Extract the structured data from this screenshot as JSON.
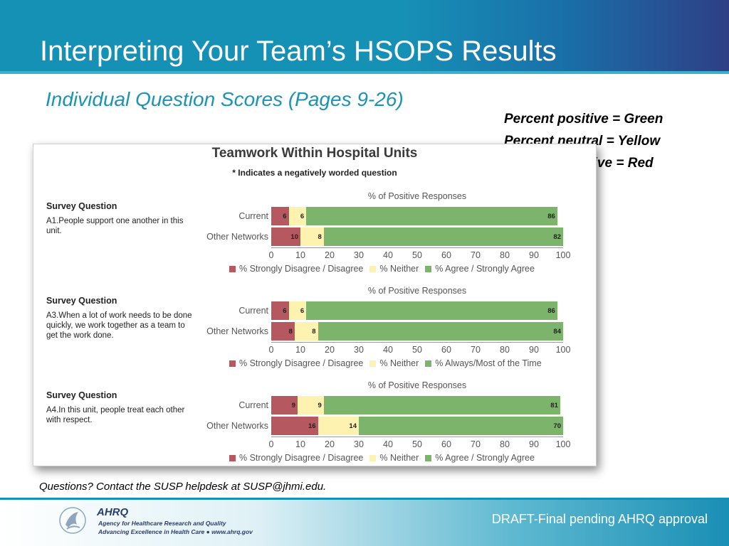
{
  "slide": {
    "title": "Interpreting Your Team’s HSOPS Results",
    "subtitle": "Individual Question Scores (Pages 9-26)",
    "color_key": [
      "Percent positive = Green",
      "Percent neutral = Yellow",
      "Percent negative = Red"
    ],
    "help_text": "Questions? Contact the SUSP helpdesk at SUSP@jhmi.edu.",
    "draft_text": "DRAFT-Final pending AHRQ approval"
  },
  "footer": {
    "org_short": "AHRQ",
    "org_name": "Agency for Healthcare Research and Quality",
    "org_tagline": "Advancing Excellence in Health Care ● www.ahrq.gov"
  },
  "colors": {
    "negative": "#b5585f",
    "neutral": "#fdf2b0",
    "positive": "#7db46b",
    "accent": "#1691b6"
  },
  "chart_data": {
    "type": "bar",
    "stacked": true,
    "orientation": "horizontal",
    "title": "Teamwork Within Hospital Units",
    "note": "* Indicates a negatively worded question",
    "xlabel": "% of Positive Responses",
    "xlim": [
      0,
      100
    ],
    "xticks": [
      0,
      10,
      20,
      30,
      40,
      50,
      60,
      70,
      80,
      90,
      100
    ],
    "panels": [
      {
        "heading": "Survey Question",
        "question": "A1.People support one another in this unit.",
        "categories": [
          "Current",
          "Other Networks"
        ],
        "series": [
          {
            "name": "% Strongly Disagree / Disagree",
            "values": [
              6,
              10
            ]
          },
          {
            "name": "% Neither",
            "values": [
              6,
              8
            ]
          },
          {
            "name": "% Agree / Strongly Agree",
            "values": [
              86,
              82
            ]
          }
        ]
      },
      {
        "heading": "Survey Question",
        "question": "A3.When a lot of work needs to be done quickly, we work together as a team to get the work done.",
        "categories": [
          "Current",
          "Other Networks"
        ],
        "series": [
          {
            "name": "% Strongly Disagree / Disagree",
            "values": [
              6,
              8
            ]
          },
          {
            "name": "% Neither",
            "values": [
              6,
              8
            ]
          },
          {
            "name": "% Always/Most of the Time",
            "values": [
              86,
              84
            ]
          }
        ]
      },
      {
        "heading": "Survey Question",
        "question": "A4.In this unit, people treat each other with respect.",
        "categories": [
          "Current",
          "Other Networks"
        ],
        "series": [
          {
            "name": "% Strongly Disagree / Disagree",
            "values": [
              9,
              16
            ]
          },
          {
            "name": "% Neither",
            "values": [
              9,
              14
            ]
          },
          {
            "name": "% Agree / Strongly Agree",
            "values": [
              81,
              70
            ]
          }
        ]
      }
    ]
  }
}
